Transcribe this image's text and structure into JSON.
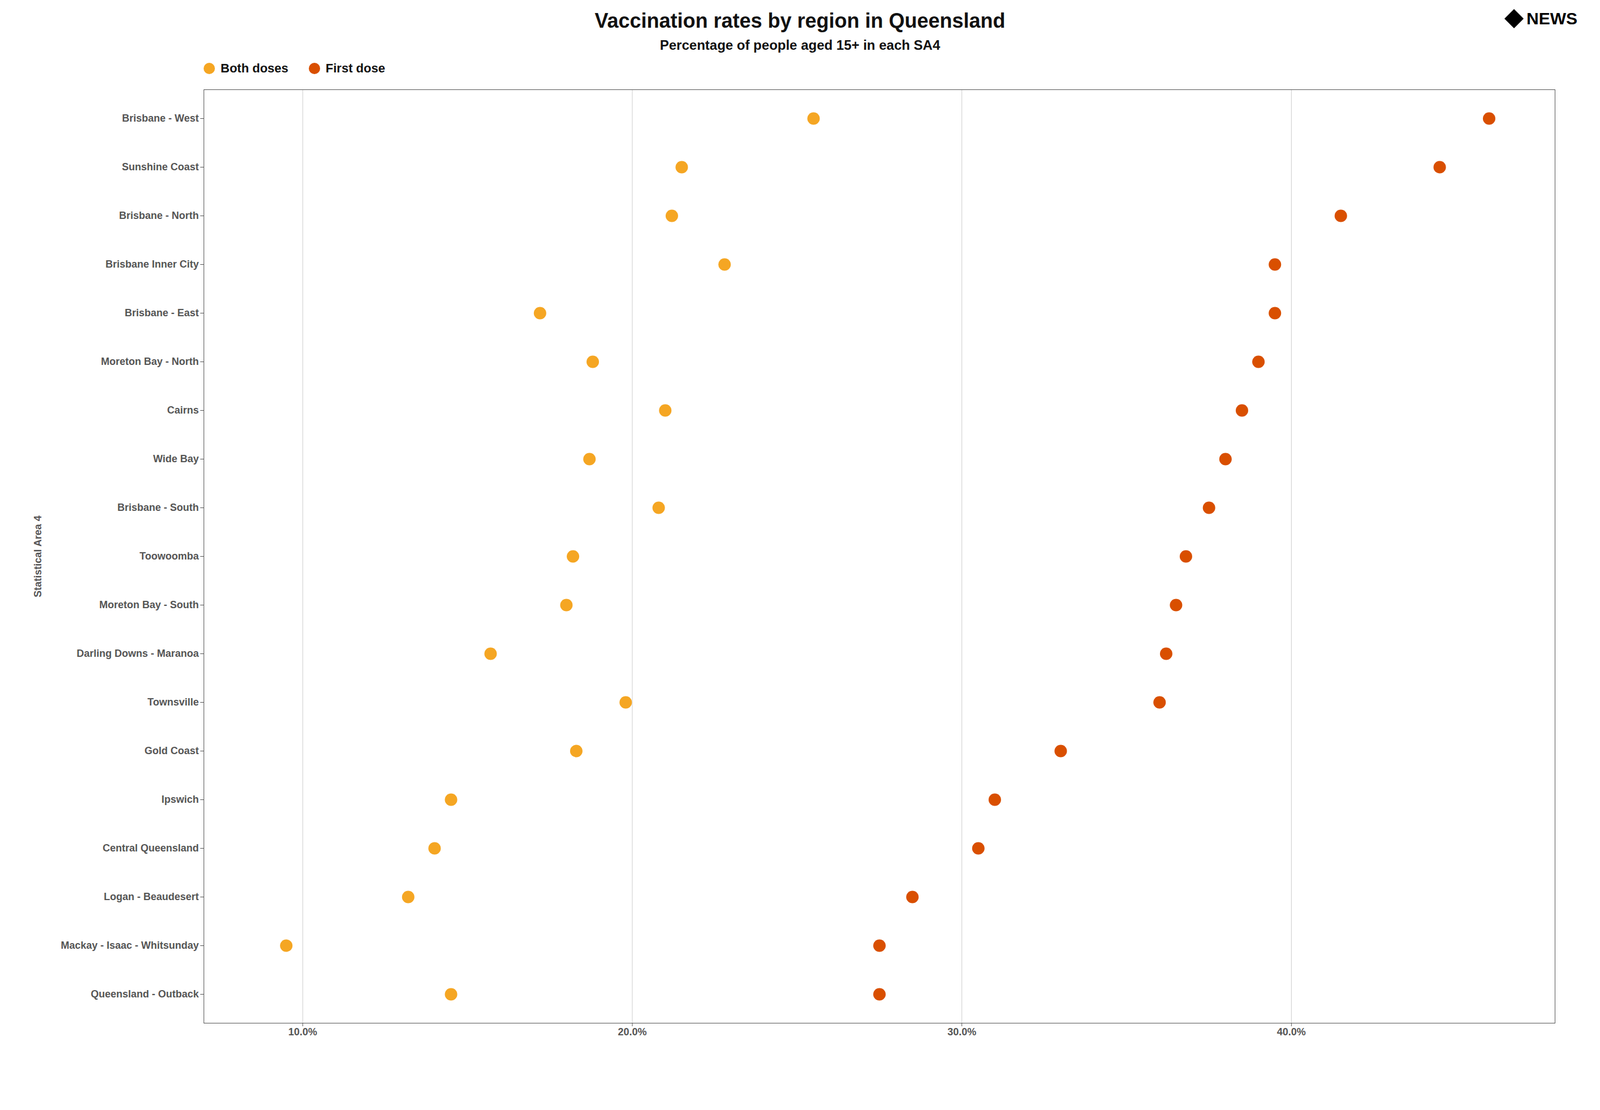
{
  "chart_data": {
    "type": "scatter",
    "orientation": "horizontal",
    "title": "Vaccination rates by region in Queensland",
    "subtitle": "Percentage of people aged 15+ in each SA4",
    "ylabel": "Statistical Area 4",
    "annotations": [
      "NEWS"
    ],
    "categories": [
      "Brisbane - West",
      "Sunshine Coast",
      "Brisbane - North",
      "Brisbane Inner City",
      "Brisbane - East",
      "Moreton Bay - North",
      "Cairns",
      "Wide Bay",
      "Brisbane - South",
      "Toowoomba",
      "Moreton Bay - South",
      "Darling Downs - Maranoa",
      "Townsville",
      "Gold Coast",
      "Ipswich",
      "Central Queensland",
      "Logan - Beaudesert",
      "Mackay - Isaac - Whitsunday",
      "Queensland - Outback"
    ],
    "series": [
      {
        "name": "Both doses",
        "color": "#F5A623",
        "marker": "circle",
        "values": [
          25.5,
          21.5,
          21.2,
          22.8,
          17.2,
          18.8,
          21.0,
          18.7,
          20.8,
          18.2,
          18.0,
          15.7,
          19.8,
          18.3,
          14.5,
          14.0,
          13.2,
          9.5,
          14.5
        ]
      },
      {
        "name": "First dose",
        "color": "#D94F00",
        "marker": "circle",
        "values": [
          46.0,
          44.5,
          41.5,
          39.5,
          39.5,
          39.0,
          38.5,
          38.0,
          37.5,
          36.8,
          36.5,
          36.2,
          36.0,
          33.0,
          31.0,
          30.5,
          28.5,
          27.5,
          27.5
        ]
      }
    ],
    "xlim": [
      7.0,
      48.0
    ],
    "xticks": [
      {
        "value": 10,
        "label": "10.0%"
      },
      {
        "value": 20,
        "label": "20.0%"
      },
      {
        "value": 30,
        "label": "30.0%"
      },
      {
        "value": 40,
        "label": "40.0%"
      }
    ],
    "grid": true,
    "legend": "upper left"
  }
}
